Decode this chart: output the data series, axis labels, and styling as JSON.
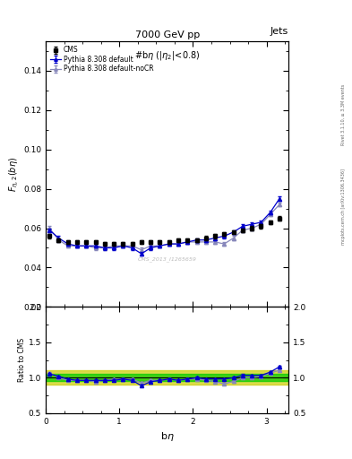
{
  "title_top": "7000 GeV pp",
  "title_right": "Jets",
  "plot_title": "#bη (|η₂|<0.8)",
  "watermark": "CMS_2013_I1265659",
  "xlabel": "bη",
  "ylabel_main": "F_{η,2}(bη)",
  "ylabel_ratio": "Ratio to CMS",
  "right_label": "mcplots.cern.ch [arXiv:1306.3436]",
  "right_label2": "Rivet 3.1.10, ≥ 3.3M events",
  "cms_x": [
    0.05,
    0.175,
    0.3,
    0.425,
    0.55,
    0.675,
    0.8,
    0.925,
    1.05,
    1.175,
    1.3,
    1.425,
    1.55,
    1.675,
    1.8,
    1.925,
    2.05,
    2.175,
    2.3,
    2.425,
    2.55,
    2.675,
    2.8,
    2.925,
    3.05,
    3.175
  ],
  "cms_y": [
    0.056,
    0.054,
    0.053,
    0.053,
    0.053,
    0.053,
    0.052,
    0.052,
    0.052,
    0.052,
    0.053,
    0.053,
    0.053,
    0.053,
    0.054,
    0.054,
    0.054,
    0.055,
    0.056,
    0.057,
    0.058,
    0.059,
    0.06,
    0.061,
    0.063,
    0.065
  ],
  "cms_yerr": [
    0.001,
    0.001,
    0.001,
    0.001,
    0.001,
    0.001,
    0.001,
    0.001,
    0.001,
    0.001,
    0.001,
    0.001,
    0.001,
    0.001,
    0.001,
    0.001,
    0.001,
    0.001,
    0.001,
    0.001,
    0.001,
    0.001,
    0.001,
    0.001,
    0.001,
    0.001
  ],
  "py_default_x": [
    0.05,
    0.175,
    0.3,
    0.425,
    0.55,
    0.675,
    0.8,
    0.925,
    1.05,
    1.175,
    1.3,
    1.425,
    1.55,
    1.675,
    1.8,
    1.925,
    2.05,
    2.175,
    2.3,
    2.425,
    2.55,
    2.675,
    2.8,
    2.925,
    3.05,
    3.175
  ],
  "py_default_y": [
    0.059,
    0.055,
    0.052,
    0.051,
    0.051,
    0.051,
    0.05,
    0.05,
    0.051,
    0.05,
    0.047,
    0.05,
    0.051,
    0.052,
    0.052,
    0.053,
    0.054,
    0.054,
    0.055,
    0.056,
    0.058,
    0.061,
    0.062,
    0.063,
    0.068,
    0.075
  ],
  "py_default_yerr": [
    0.001,
    0.001,
    0.001,
    0.001,
    0.001,
    0.001,
    0.001,
    0.001,
    0.001,
    0.001,
    0.001,
    0.001,
    0.001,
    0.001,
    0.001,
    0.001,
    0.001,
    0.001,
    0.001,
    0.001,
    0.001,
    0.001,
    0.001,
    0.001,
    0.001,
    0.001
  ],
  "py_nocr_x": [
    0.05,
    0.175,
    0.3,
    0.425,
    0.55,
    0.675,
    0.8,
    0.925,
    1.05,
    1.175,
    1.3,
    1.425,
    1.55,
    1.675,
    1.8,
    1.925,
    2.05,
    2.175,
    2.3,
    2.425,
    2.55,
    2.675,
    2.8,
    2.925,
    3.05,
    3.175
  ],
  "py_nocr_y": [
    0.06,
    0.054,
    0.051,
    0.051,
    0.051,
    0.05,
    0.05,
    0.051,
    0.051,
    0.051,
    0.049,
    0.051,
    0.051,
    0.052,
    0.052,
    0.053,
    0.053,
    0.053,
    0.053,
    0.052,
    0.055,
    0.059,
    0.06,
    0.062,
    0.067,
    0.072
  ],
  "py_nocr_yerr": [
    0.001,
    0.001,
    0.001,
    0.001,
    0.001,
    0.001,
    0.001,
    0.001,
    0.001,
    0.001,
    0.001,
    0.001,
    0.001,
    0.001,
    0.001,
    0.001,
    0.001,
    0.001,
    0.001,
    0.001,
    0.001,
    0.001,
    0.001,
    0.001,
    0.001,
    0.001
  ],
  "ratio_py_default_y": [
    1.054,
    1.019,
    0.981,
    0.962,
    0.962,
    0.962,
    0.962,
    0.962,
    0.981,
    0.962,
    0.887,
    0.943,
    0.962,
    0.981,
    0.963,
    0.981,
    1.0,
    0.982,
    0.982,
    0.982,
    1.0,
    1.034,
    1.033,
    1.033,
    1.079,
    1.154
  ],
  "ratio_py_nocr_y": [
    1.071,
    1.0,
    0.962,
    0.962,
    0.962,
    0.943,
    0.962,
    0.981,
    0.981,
    0.981,
    0.925,
    0.962,
    0.962,
    0.981,
    0.963,
    0.981,
    0.981,
    0.964,
    0.946,
    0.912,
    0.948,
    1.0,
    1.0,
    1.016,
    1.063,
    1.108
  ],
  "cms_color": "#000000",
  "py_default_color": "#0000cc",
  "py_nocr_color": "#8888bb",
  "band_green": "#00cc00",
  "band_yellow": "#cccc00",
  "ylim_main": [
    0.02,
    0.155
  ],
  "ylim_ratio": [
    0.5,
    2.0
  ],
  "xlim": [
    0.0,
    3.3
  ]
}
